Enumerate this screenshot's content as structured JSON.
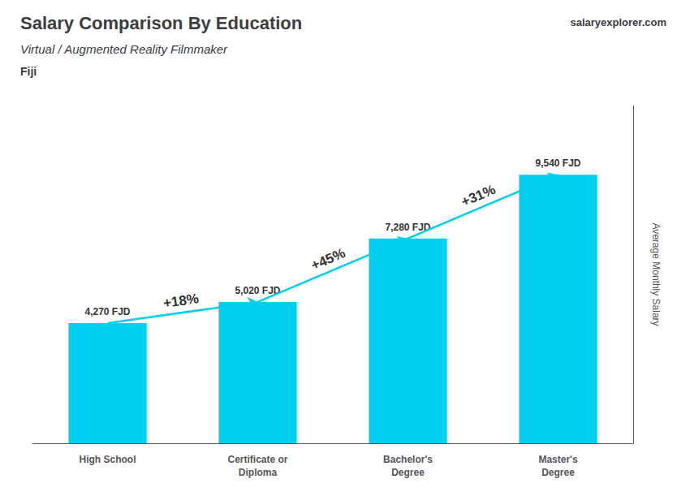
{
  "chart_data": {
    "type": "bar",
    "title": "Salary Comparison By Education",
    "subtitle": "Virtual / Augmented Reality Filmmaker",
    "country": "Fiji",
    "brand": [
      "salary",
      "explorer.com"
    ],
    "ylabel": "Average Monthly Salary",
    "categories": [
      "High School",
      "Certificate or\nDiploma",
      "Bachelor's\nDegree",
      "Master's\nDegree"
    ],
    "values": [
      4270,
      5020,
      7280,
      9540
    ],
    "value_labels": [
      "4,270 FJD",
      "5,020 FJD",
      "7,280 FJD",
      "9,540 FJD"
    ],
    "data_labels": true,
    "color": "#00CFEF",
    "ylim": [
      0,
      12000
    ],
    "grid": false,
    "tick_labels": "x",
    "annotations": [
      {
        "text": "+18%",
        "from": "High School",
        "to": "Certificate or\nDiploma"
      },
      {
        "text": "+45%",
        "from": "Certificate or\nDiploma",
        "to": "Bachelor's\nDegree"
      },
      {
        "text": "+31%",
        "from": "Bachelor's\nDegree",
        "to": "Master's\nDegree"
      }
    ]
  }
}
